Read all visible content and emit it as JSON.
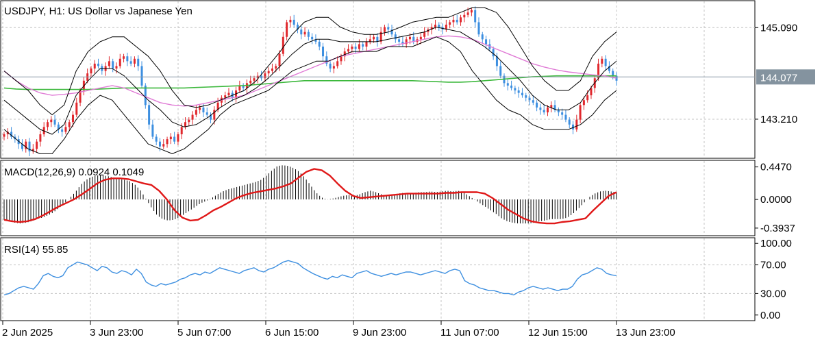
{
  "chart_data": [
    {
      "type": "candlestick",
      "title": "USDJPY, H1:  US Dollar vs Japanese Yen",
      "ylim": [
        142.45,
        145.6
      ],
      "yticks": [
        145.09,
        143.21
      ],
      "ytick_labels": [
        "145.090",
        "143.210"
      ],
      "current_price": 144.077,
      "current_price_label": "144.077",
      "close_series": [
        142.9,
        142.95,
        142.85,
        142.8,
        142.7,
        142.6,
        142.75,
        142.55,
        142.6,
        142.75,
        142.9,
        143.05,
        143.15,
        143.2,
        143.1,
        143.0,
        142.95,
        143.05,
        143.15,
        143.3,
        143.55,
        143.8,
        144.0,
        144.15,
        144.25,
        144.35,
        144.3,
        144.2,
        144.3,
        144.4,
        144.25,
        144.3,
        144.45,
        144.5,
        144.4,
        144.35,
        144.45,
        144.3,
        143.9,
        143.5,
        143.1,
        142.85,
        142.75,
        142.65,
        142.7,
        142.8,
        142.85,
        142.75,
        142.9,
        143.05,
        143.15,
        143.2,
        143.3,
        143.4,
        143.45,
        143.35,
        143.3,
        143.2,
        143.4,
        143.55,
        143.65,
        143.7,
        143.75,
        143.65,
        143.8,
        143.9,
        143.85,
        143.95,
        144.0,
        144.05,
        144.1,
        144.05,
        144.15,
        144.2,
        144.25,
        144.3,
        144.55,
        144.9,
        145.2,
        145.25,
        145.15,
        145.05,
        144.95,
        145.0,
        144.9,
        144.85,
        144.8,
        144.7,
        144.5,
        144.35,
        144.25,
        144.3,
        144.4,
        144.5,
        144.6,
        144.65,
        144.7,
        144.65,
        144.75,
        144.7,
        144.8,
        144.85,
        144.9,
        144.8,
        145.0,
        145.1,
        145.05,
        144.95,
        144.85,
        144.8,
        144.75,
        144.85,
        144.9,
        144.8,
        144.85,
        144.9,
        145.0,
        145.05,
        145.1,
        145.15,
        145.1,
        145.05,
        145.15,
        145.2,
        145.25,
        145.2,
        145.3,
        145.35,
        145.4,
        145.45,
        145.2,
        144.95,
        144.85,
        144.75,
        144.65,
        144.5,
        144.3,
        144.1,
        143.95,
        143.9,
        143.85,
        143.8,
        143.75,
        143.7,
        143.65,
        143.6,
        143.55,
        143.45,
        143.4,
        143.35,
        143.45,
        143.5,
        143.4,
        143.35,
        143.3,
        143.2,
        143.1,
        143.0,
        143.2,
        143.5,
        143.6,
        143.7,
        143.85,
        144.05,
        144.35,
        144.45,
        144.3,
        144.2,
        144.1,
        144.0
      ],
      "bollinger_upper": [
        144.2,
        144.0,
        143.8,
        143.5,
        143.3,
        143.5,
        144.2,
        144.6,
        144.8,
        144.9,
        144.9,
        144.7,
        144.5,
        144.2,
        143.8,
        143.5,
        143.45,
        143.5,
        143.6,
        143.7,
        143.8,
        144.0,
        144.3,
        144.6,
        144.95,
        145.2,
        145.3,
        145.3,
        145.1,
        145.0,
        144.95,
        144.95,
        145.0,
        145.1,
        145.2,
        145.25,
        145.3,
        145.3,
        145.4,
        145.5,
        145.5,
        145.4,
        145.1,
        144.7,
        144.3,
        144.0,
        143.8,
        143.8,
        144.0,
        144.5,
        144.8,
        145.0
      ],
      "bollinger_lower": [
        143.0,
        142.8,
        142.6,
        142.5,
        142.5,
        142.8,
        143.2,
        143.5,
        143.7,
        143.6,
        143.3,
        143.0,
        142.7,
        142.6,
        142.5,
        142.6,
        142.8,
        143.0,
        143.3,
        143.5,
        143.6,
        143.7,
        143.8,
        144.0,
        144.2,
        144.3,
        144.4,
        144.4,
        144.5,
        144.6,
        144.6,
        144.6,
        144.7,
        144.7,
        144.7,
        144.8,
        144.9,
        144.8,
        144.6,
        144.2,
        143.9,
        143.6,
        143.4,
        143.3,
        143.1,
        143.0,
        143.0,
        143.0,
        143.1,
        143.3,
        143.6,
        143.8
      ],
      "bollinger_middle": [
        143.6,
        143.4,
        143.2,
        143.0,
        142.9,
        143.1,
        143.7,
        144.0,
        144.25,
        144.25,
        144.1,
        143.85,
        143.6,
        143.4,
        143.15,
        143.05,
        143.1,
        143.25,
        143.45,
        143.6,
        143.7,
        143.85,
        144.05,
        144.3,
        144.55,
        144.75,
        144.85,
        144.85,
        144.8,
        144.8,
        144.8,
        144.8,
        144.85,
        144.9,
        144.95,
        145.0,
        145.1,
        145.05,
        145.0,
        144.85,
        144.7,
        144.5,
        144.25,
        144.0,
        143.7,
        143.5,
        143.4,
        143.4,
        143.55,
        143.9,
        144.2,
        144.4
      ],
      "sma_slow_pink": [
        144.2,
        144.0,
        143.85,
        143.75,
        143.7,
        143.72,
        143.75,
        143.8,
        143.85,
        143.9,
        143.85,
        143.75,
        143.65,
        143.55,
        143.5,
        143.48,
        143.5,
        143.55,
        143.6,
        143.65,
        143.7,
        143.8,
        143.9,
        144.0,
        144.1,
        144.2,
        144.3,
        144.4,
        144.5,
        144.55,
        144.6,
        144.65,
        144.7,
        144.75,
        144.8,
        144.85,
        144.9,
        144.92,
        144.9,
        144.85,
        144.75,
        144.65,
        144.55,
        144.45,
        144.35,
        144.28,
        144.22,
        144.18,
        144.15,
        144.12,
        144.1,
        144.05
      ],
      "sma_green": [
        143.85,
        143.83,
        143.82,
        143.82,
        143.82,
        143.82,
        143.82,
        143.82,
        143.83,
        143.84,
        143.85,
        143.85,
        143.85,
        143.85,
        143.85,
        143.85,
        143.86,
        143.87,
        143.88,
        143.89,
        143.9,
        143.92,
        143.94,
        143.96,
        143.98,
        144.0,
        144.0,
        144.0,
        144.0,
        144.0,
        144.0,
        144.0,
        144.0,
        144.0,
        144.0,
        143.99,
        143.98,
        143.97,
        143.97,
        143.98,
        144.0,
        144.02,
        144.04,
        144.06,
        144.08,
        144.09,
        144.1,
        144.1,
        144.1,
        144.1,
        144.1,
        144.1
      ]
    },
    {
      "type": "bar+line",
      "title": "MACD(12,26,9) 0.0924 0.1049",
      "ylim": [
        -0.47,
        0.5
      ],
      "yticks": [
        0.447,
        0.0,
        -0.3937
      ],
      "ytick_labels": [
        "0.4470",
        "0.0000",
        "-0.3937"
      ],
      "macd_histogram": [
        -0.28,
        -0.3,
        -0.32,
        -0.33,
        -0.32,
        -0.3,
        -0.27,
        -0.25,
        -0.22,
        -0.18,
        -0.12,
        -0.06,
        0.02,
        0.1,
        0.2,
        0.27,
        0.31,
        0.33,
        0.33,
        0.32,
        0.3,
        0.28,
        0.27,
        0.25,
        0.2,
        0.12,
        0.0,
        -0.12,
        -0.22,
        -0.27,
        -0.29,
        -0.28,
        -0.25,
        -0.2,
        -0.15,
        -0.1,
        -0.05,
        -0.02,
        0.02,
        0.07,
        0.11,
        0.14,
        0.16,
        0.18,
        0.2,
        0.22,
        0.24,
        0.27,
        0.33,
        0.4,
        0.46,
        0.47,
        0.46,
        0.43,
        0.38,
        0.3,
        0.2,
        0.1,
        0.03,
        0.0,
        0.01,
        0.03,
        0.05,
        0.06,
        0.05,
        0.07,
        0.1,
        0.12,
        0.1,
        0.07,
        0.05,
        0.06,
        0.08,
        0.09,
        0.08,
        0.09,
        0.1,
        0.1,
        0.11,
        0.1,
        0.11,
        0.12,
        0.11,
        0.12,
        0.1,
        0.05,
        0.0,
        -0.05,
        -0.1,
        -0.15,
        -0.2,
        -0.26,
        -0.3,
        -0.32,
        -0.33,
        -0.33,
        -0.33,
        -0.32,
        -0.3,
        -0.29,
        -0.27,
        -0.27,
        -0.27,
        -0.25,
        -0.2,
        -0.13,
        -0.05,
        0.03,
        0.08,
        0.11,
        0.12,
        0.11,
        0.1
      ],
      "macd_signal": [
        -0.28,
        -0.3,
        -0.31,
        -0.3,
        -0.27,
        -0.22,
        -0.16,
        -0.1,
        -0.05,
        0.0,
        0.07,
        0.14,
        0.22,
        0.27,
        0.29,
        0.29,
        0.28,
        0.25,
        0.22,
        0.2,
        0.12,
        0.0,
        -0.15,
        -0.25,
        -0.29,
        -0.28,
        -0.22,
        -0.15,
        -0.1,
        -0.04,
        0.02,
        0.06,
        0.09,
        0.11,
        0.13,
        0.15,
        0.18,
        0.22,
        0.3,
        0.38,
        0.42,
        0.4,
        0.33,
        0.22,
        0.12,
        0.05,
        0.02,
        0.03,
        0.04,
        0.05,
        0.06,
        0.07,
        0.08,
        0.08,
        0.08,
        0.08,
        0.08,
        0.09,
        0.09,
        0.1,
        0.1,
        0.1,
        0.08,
        0.02,
        -0.06,
        -0.14,
        -0.2,
        -0.26,
        -0.3,
        -0.32,
        -0.33,
        -0.33,
        -0.31,
        -0.3,
        -0.28,
        -0.26,
        -0.15,
        -0.05,
        0.05,
        0.1
      ]
    },
    {
      "type": "line",
      "title": "RSI(14) 55.85",
      "ylim": [
        -5,
        105
      ],
      "yticks": [
        100,
        70,
        30,
        0
      ],
      "ytick_labels": [
        "100.00",
        "70.00",
        "30.00",
        "0.00"
      ],
      "rsi": [
        28,
        30,
        34,
        38,
        40,
        38,
        36,
        44,
        55,
        58,
        54,
        52,
        55,
        66,
        70,
        74,
        72,
        70,
        66,
        62,
        68,
        66,
        60,
        58,
        62,
        60,
        56,
        64,
        58,
        46,
        42,
        40,
        44,
        42,
        44,
        46,
        50,
        52,
        56,
        58,
        56,
        60,
        58,
        62,
        66,
        64,
        62,
        60,
        58,
        62,
        64,
        66,
        62,
        60,
        64,
        66,
        70,
        74,
        76,
        74,
        72,
        66,
        62,
        58,
        55,
        52,
        50,
        54,
        52,
        56,
        54,
        52,
        58,
        60,
        62,
        58,
        56,
        54,
        56,
        58,
        56,
        58,
        60,
        60,
        58,
        56,
        58,
        60,
        62,
        60,
        58,
        62,
        64,
        62,
        48,
        44,
        42,
        38,
        36,
        34,
        34,
        32,
        30,
        30,
        28,
        32,
        34,
        38,
        40,
        38,
        36,
        38,
        36,
        34,
        36,
        36,
        40,
        50,
        56,
        58,
        62,
        66,
        64,
        58,
        56,
        55
      ]
    }
  ],
  "x_axis": {
    "labels": [
      "2 Jun 2025",
      "3 Jun 23:00",
      "5 Jun 07:00",
      "6 Jun 15:00",
      "9 Jun 23:00",
      "11 Jun 07:00",
      "12 Jun 15:00",
      "13 Jun 23:00"
    ]
  },
  "colors": {
    "bull": "#e0282d",
    "bear": "#3d8fe0",
    "bollinger": "#000000",
    "sma_slow": "#e07bd6",
    "sma_green": "#3cb83c",
    "macd_hist": "#000000",
    "macd_signal": "#e01818",
    "rsi": "#3d8fe0",
    "price_line": "#8a99a8",
    "price_box": "#84939f",
    "grid": "#c4c4c4"
  }
}
